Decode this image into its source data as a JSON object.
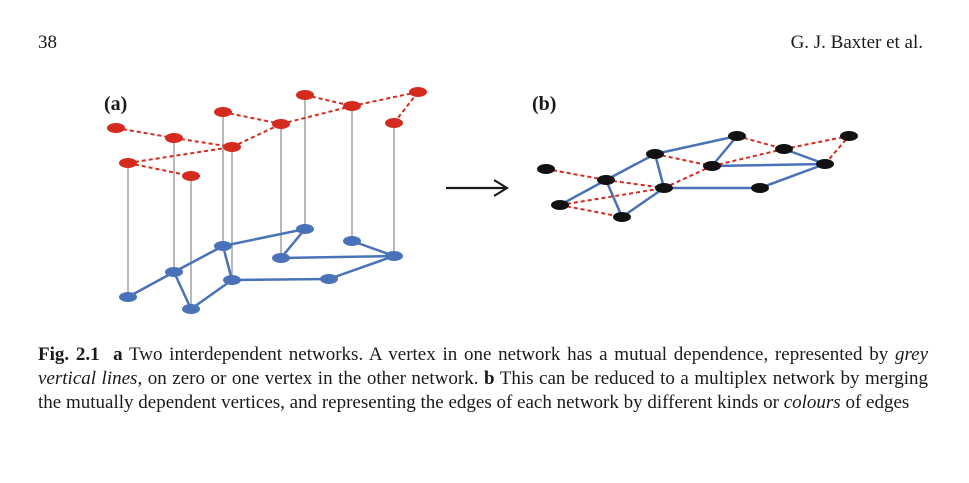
{
  "header": {
    "page_number": "38",
    "authors": "G. J. Baxter et al."
  },
  "figure": {
    "panel_a_label": "(a)",
    "panel_b_label": "(b)",
    "arrow": "→",
    "colors": {
      "layer_top": "#d52a1e",
      "layer_bottom": "#4a72b8",
      "dependency": "#b8b8b8",
      "merged": "#111111"
    }
  },
  "caption": {
    "fig_label": "Fig. 2.1",
    "part_a_label": "a",
    "part_a_text_1": " Two interdependent networks. A vertex in one network has a mutual dependence, represented by ",
    "part_a_italic": "grey vertical lines",
    "part_a_text_2": ", on zero or one vertex in the other network. ",
    "part_b_label": "b",
    "part_b_text_1": " This can be reduced to a multiplex network by merging the mutually dependent vertices, and representing the edges of each network by different kinds or ",
    "part_b_italic": "colours",
    "part_b_text_2": " of edges"
  }
}
